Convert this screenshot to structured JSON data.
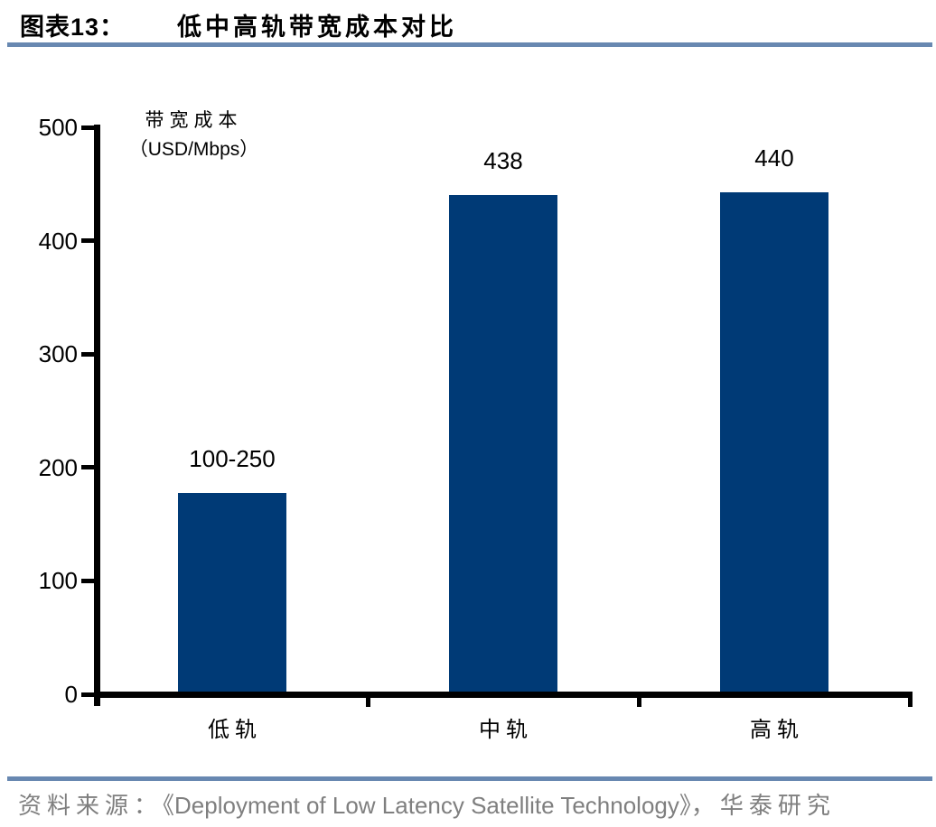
{
  "header": {
    "figure_label": "图表13：",
    "title": "低中高轨带宽成本对比"
  },
  "chart_data": {
    "type": "bar",
    "title": "低中高轨带宽成本对比",
    "categories": [
      "低轨",
      "中轨",
      "高轨"
    ],
    "values": [
      175,
      438,
      440
    ],
    "value_labels": [
      "100-250",
      "438",
      "440"
    ],
    "series": [
      {
        "name": "带宽成本",
        "values": [
          175,
          438,
          440
        ]
      }
    ],
    "xlabel": "",
    "ylabel": "带宽成本（USD/Mbps）",
    "ylabel_line1": "带宽成本",
    "ylabel_line2": "（USD/Mbps）",
    "ylim": [
      0,
      500
    ],
    "yticks": [
      0,
      100,
      200,
      300,
      400,
      500
    ],
    "grid": false,
    "legend_position": "none",
    "bar_color": "#003a76"
  },
  "footer": {
    "source_prefix": "资料来源：",
    "source_title": "《Deployment of Low Latency Satellite Technology》",
    "source_separator": "，",
    "source_org": "华泰研究"
  },
  "colors": {
    "bar": "#003a76",
    "rule": "#6888b1",
    "axis": "#000000",
    "source_text": "#7f7f7f"
  }
}
